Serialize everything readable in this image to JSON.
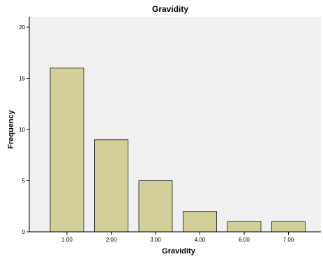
{
  "chart_data": {
    "type": "bar",
    "title": "Gravidity",
    "xlabel": "Gravidity",
    "ylabel": "Frequency",
    "categories": [
      "1.00",
      "2.00",
      "3.00",
      "4.00",
      "6.00",
      "7.00"
    ],
    "values": [
      16,
      9,
      5,
      2,
      1,
      1
    ],
    "ylim": [
      0,
      20
    ],
    "yticks": [
      0,
      5,
      10,
      15,
      20
    ],
    "grid": false,
    "colors": {
      "bar_fill": "#d4cf98",
      "bar_stroke": "#3c3c3c",
      "plot_background": "#f0f0f0"
    }
  }
}
